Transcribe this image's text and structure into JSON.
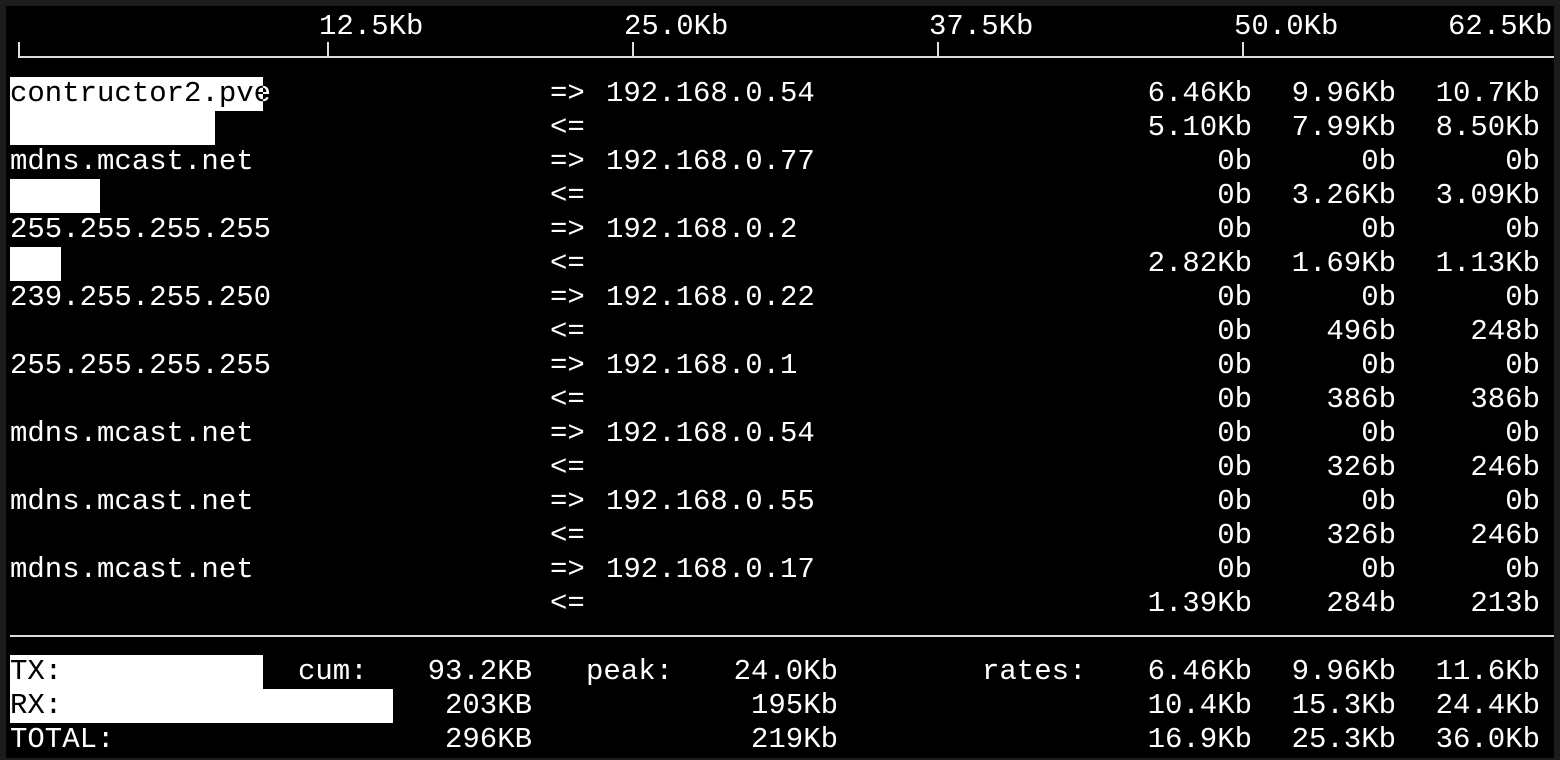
{
  "scale": {
    "ticks": [
      "12.5Kb",
      "25.0Kb",
      "37.5Kb",
      "50.0Kb",
      "62.5Kb"
    ],
    "unit_kb_per_tick": 12.5
  },
  "connections": [
    {
      "host": "contructor2.pve",
      "peer": "192.168.0.54",
      "out_arrow": "=>",
      "in_arrow": "<=",
      "tx": [
        "6.46Kb",
        "9.96Kb",
        "10.7Kb"
      ],
      "rx": [
        "5.10Kb",
        "7.99Kb",
        "8.50Kb"
      ],
      "tx_bar_kb": 9.96,
      "rx_bar_kb": 7.99
    },
    {
      "host": "mdns.mcast.net",
      "peer": "192.168.0.77",
      "out_arrow": "=>",
      "in_arrow": "<=",
      "tx": [
        "0b",
        "0b",
        "0b"
      ],
      "rx": [
        "0b",
        "3.26Kb",
        "3.09Kb"
      ],
      "tx_bar_kb": 0,
      "rx_bar_kb": 3.26
    },
    {
      "host": "255.255.255.255",
      "peer": "192.168.0.2",
      "out_arrow": "=>",
      "in_arrow": "<=",
      "tx": [
        "0b",
        "0b",
        "0b"
      ],
      "rx": [
        "2.82Kb",
        "1.69Kb",
        "1.13Kb"
      ],
      "tx_bar_kb": 0,
      "rx_bar_kb": 1.69
    },
    {
      "host": "239.255.255.250",
      "peer": "192.168.0.22",
      "out_arrow": "=>",
      "in_arrow": "<=",
      "tx": [
        "0b",
        "0b",
        "0b"
      ],
      "rx": [
        "0b",
        "496b",
        "248b"
      ],
      "tx_bar_kb": 0,
      "rx_bar_kb": 0
    },
    {
      "host": "255.255.255.255",
      "peer": "192.168.0.1",
      "out_arrow": "=>",
      "in_arrow": "<=",
      "tx": [
        "0b",
        "0b",
        "0b"
      ],
      "rx": [
        "0b",
        "386b",
        "386b"
      ],
      "tx_bar_kb": 0,
      "rx_bar_kb": 0
    },
    {
      "host": "mdns.mcast.net",
      "peer": "192.168.0.54",
      "out_arrow": "=>",
      "in_arrow": "<=",
      "tx": [
        "0b",
        "0b",
        "0b"
      ],
      "rx": [
        "0b",
        "326b",
        "246b"
      ],
      "tx_bar_kb": 0,
      "rx_bar_kb": 0
    },
    {
      "host": "mdns.mcast.net",
      "peer": "192.168.0.55",
      "out_arrow": "=>",
      "in_arrow": "<=",
      "tx": [
        "0b",
        "0b",
        "0b"
      ],
      "rx": [
        "0b",
        "326b",
        "246b"
      ],
      "tx_bar_kb": 0,
      "rx_bar_kb": 0
    },
    {
      "host": "mdns.mcast.net",
      "peer": "192.168.0.17",
      "out_arrow": "=>",
      "in_arrow": "<=",
      "tx": [
        "0b",
        "0b",
        "0b"
      ],
      "rx": [
        "1.39Kb",
        "284b",
        "213b"
      ],
      "tx_bar_kb": 0,
      "rx_bar_kb": 0
    }
  ],
  "totals": {
    "cum_label": "cum:",
    "peak_label": "peak:",
    "rates_label": "rates:",
    "rows": [
      {
        "label": "TX:",
        "cum": "93.2KB",
        "peak": "24.0Kb",
        "rates": [
          "6.46Kb",
          "9.96Kb",
          "11.6Kb"
        ],
        "bar_kb": 9.96
      },
      {
        "label": "RX:",
        "cum": "203KB",
        "peak": "195Kb",
        "rates": [
          "10.4Kb",
          "15.3Kb",
          "24.4Kb"
        ],
        "bar_kb": 15.3
      },
      {
        "label": "TOTAL:",
        "cum": "296KB",
        "peak": "219Kb",
        "rates": [
          "16.9Kb",
          "25.3Kb",
          "36.0Kb"
        ]
      }
    ]
  }
}
